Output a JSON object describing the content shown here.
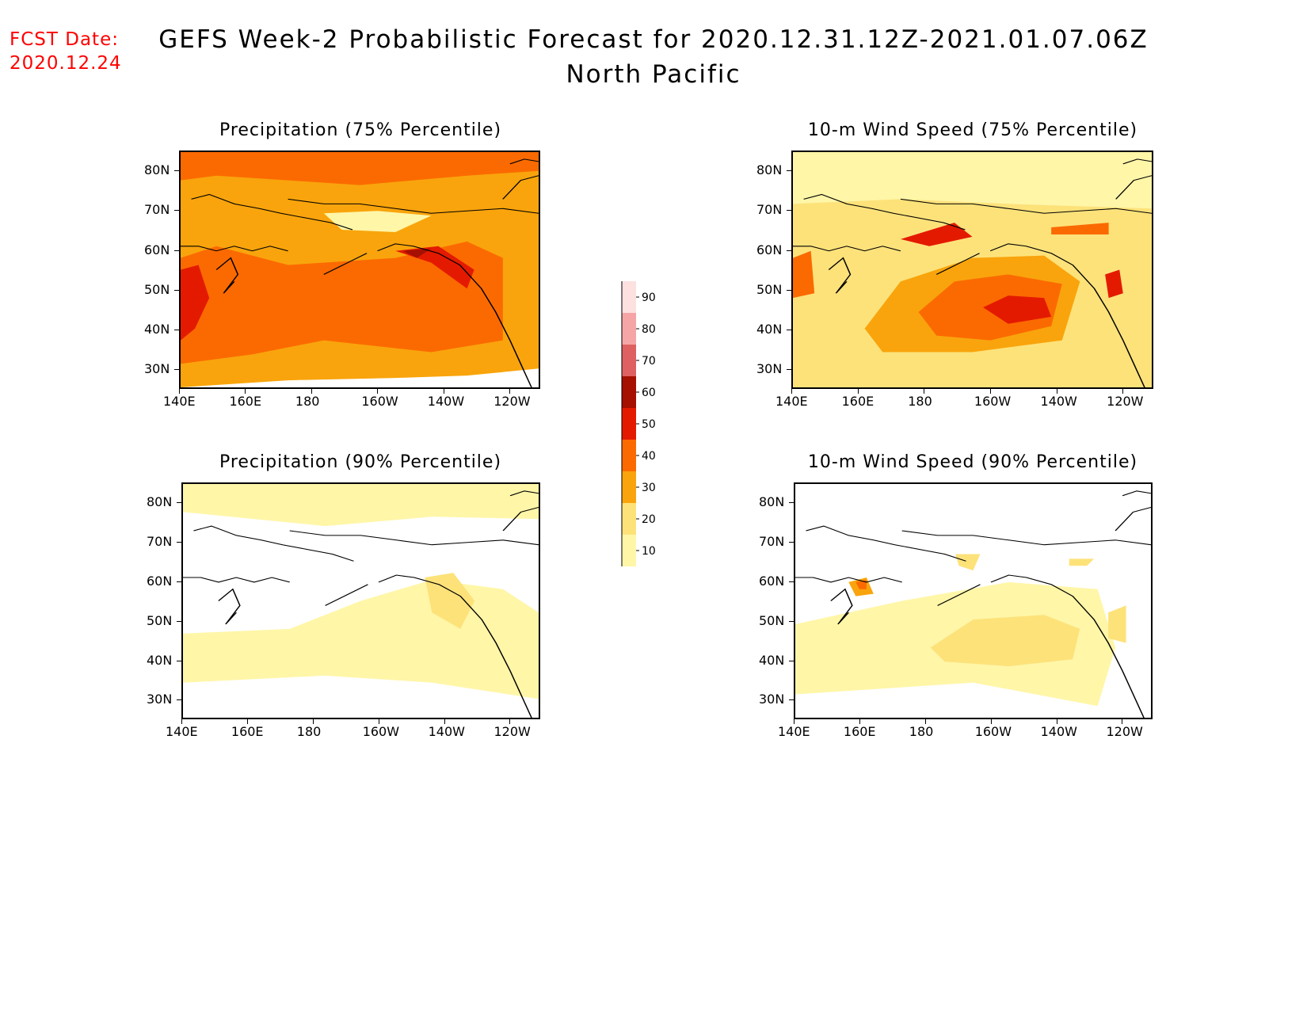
{
  "header": {
    "fcst_label": "FCST Date:",
    "fcst_date": "2020.12.24",
    "title_line1": "GEFS Week-2 Probabilistic Forecast for 2020.12.31.12Z-2021.01.07.06Z",
    "title_line2": "North Pacific"
  },
  "panels": [
    {
      "id": "precip75",
      "title": "Precipitation (75% Percentile)"
    },
    {
      "id": "wind75",
      "title": "10-m Wind Speed (75% Percentile)"
    },
    {
      "id": "precip90",
      "title": "Precipitation (90% Percentile)"
    },
    {
      "id": "wind90",
      "title": "10-m Wind Speed (90% Percentile)"
    }
  ],
  "axes": {
    "lon_labels": [
      "140E",
      "160E",
      "180",
      "160W",
      "140W",
      "120W"
    ],
    "lat_labels": [
      "80N",
      "70N",
      "60N",
      "50N",
      "40N",
      "30N"
    ]
  },
  "colorbar": {
    "levels": [
      "10",
      "20",
      "30",
      "40",
      "50",
      "60",
      "70",
      "80",
      "90"
    ],
    "colors": [
      "#fff6a8",
      "#fde27a",
      "#f9a40c",
      "#fb6a00",
      "#e41a00",
      "#a51000",
      "#de6060",
      "#f5a5a5",
      "#fde0e0"
    ]
  },
  "chart_data": {
    "type": "heatmap",
    "lon_range": [
      "140E",
      "110W"
    ],
    "lat_range": [
      "25N",
      "85N"
    ],
    "units": "%"
  }
}
